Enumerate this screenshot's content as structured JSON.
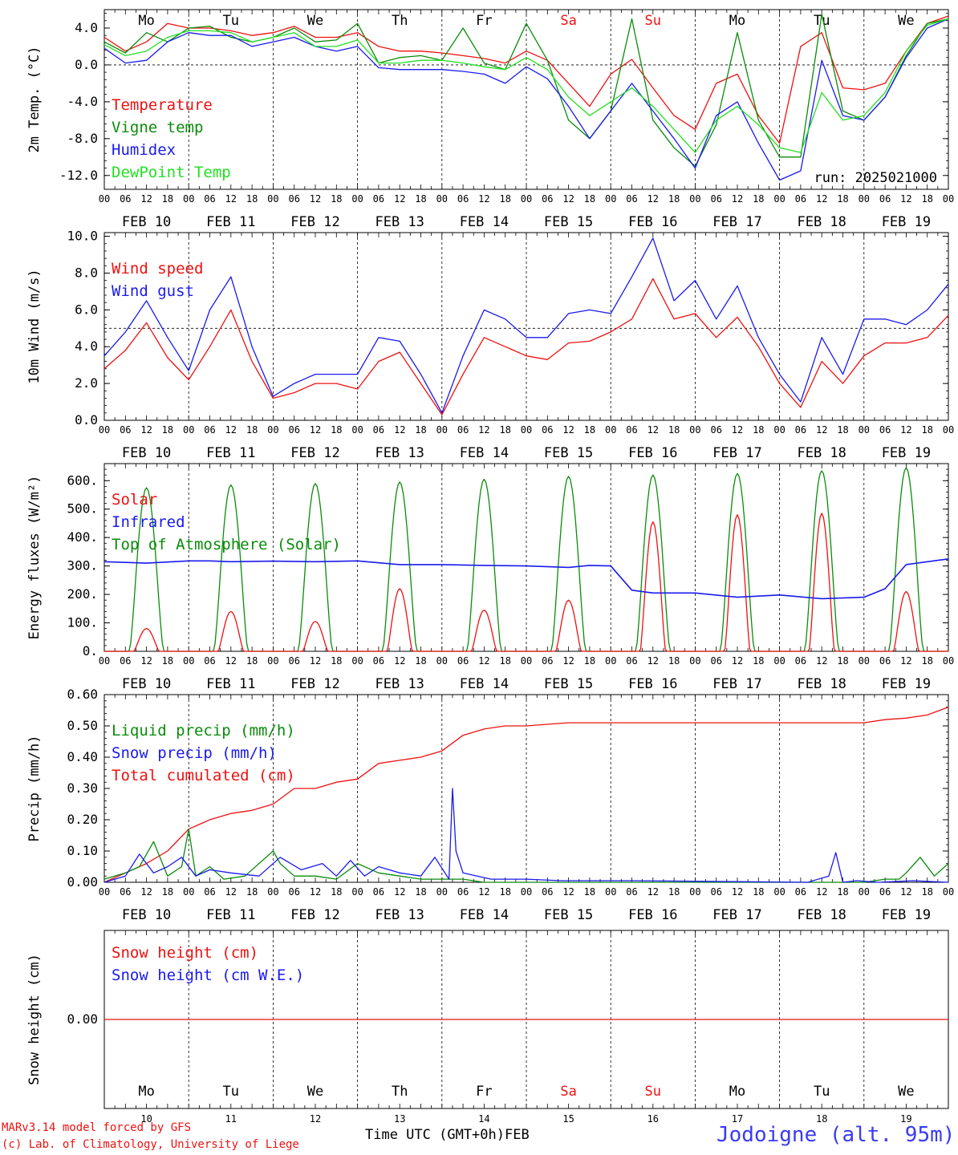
{
  "colors": {
    "red": "#ee1111",
    "dgreen": "#0a8c0a",
    "blue": "#1a1aee",
    "lgreen": "#22e022",
    "station": "#3a3af5"
  },
  "x_axis": {
    "hour_labels": [
      "00",
      "06",
      "12",
      "18"
    ],
    "final_hour_label": "00",
    "date_labels": [
      "FEB 10",
      "FEB 11",
      "FEB 12",
      "FEB 13",
      "FEB 14",
      "FEB 15",
      "FEB 16",
      "FEB 17",
      "FEB 18",
      "FEB 19"
    ],
    "weekdays": [
      "Mo",
      "Tu",
      "We",
      "Th",
      "Fr",
      "Sa",
      "Su",
      "Mo",
      "Tu",
      "We"
    ],
    "weekend_index": [
      5,
      6
    ],
    "day_numbers": [
      "10",
      "11",
      "12",
      "13",
      "14",
      "15",
      "16",
      "17",
      "18",
      "19"
    ],
    "axis_title": "Time UTC (GMT+0h)",
    "month": "FEB"
  },
  "footer": {
    "model": "MARv3.14 model forced by GFS",
    "lab": "(c) Lab. of Climatology, University of Liege",
    "station": "Jodoigne (alt. 95m)"
  },
  "chart_data": [
    {
      "type": "line",
      "ylabel": "2m Temp. (°C)",
      "ylim": [
        -13.5,
        6
      ],
      "yticks": [
        4.0,
        0.0,
        -4.0,
        -8.0,
        -12.0
      ],
      "tick_labels": [
        "4.0",
        "0.0",
        "-4.0",
        "-8.0",
        "-12.0"
      ],
      "ref_line": 0,
      "weekday_row": true,
      "run_label": "run: 2025021000",
      "legend": [
        "Temperature",
        "Vigne temp",
        "Humidex",
        "DewPoint Temp"
      ],
      "x_hours": [
        0,
        6,
        12,
        18,
        24,
        30,
        36,
        42,
        48,
        54,
        60,
        66,
        72,
        78,
        84,
        90,
        96,
        102,
        108,
        114,
        120,
        126,
        132,
        138,
        144,
        150,
        156,
        162,
        168,
        174,
        180,
        186,
        192,
        198,
        204,
        210,
        216,
        222,
        228,
        234,
        240
      ],
      "series": [
        {
          "name": "Temperature",
          "color": "red",
          "values": [
            3.0,
            1.5,
            2.5,
            4.5,
            4.0,
            4.0,
            3.7,
            3.2,
            3.5,
            4.2,
            3.0,
            3.0,
            3.5,
            2.0,
            1.5,
            1.5,
            1.3,
            1.0,
            0.7,
            0.2,
            1.5,
            0.5,
            -2.0,
            -4.5,
            -1.0,
            0.6,
            -2.5,
            -5.5,
            -7.0,
            -2.0,
            -1.0,
            -5.5,
            -8.5,
            2.0,
            3.5,
            -2.5,
            -2.7,
            -2.0,
            1.5,
            4.5,
            5.3
          ]
        },
        {
          "name": "Vigne temp",
          "color": "dgreen",
          "values": [
            2.5,
            1.3,
            3.5,
            2.5,
            4.0,
            4.2,
            3.0,
            2.5,
            3.0,
            4.0,
            2.5,
            2.7,
            4.5,
            0.2,
            0.8,
            1.0,
            0.5,
            4.0,
            0.2,
            -0.5,
            4.5,
            0.5,
            -6.0,
            -8.0,
            -5.0,
            5.0,
            -6.0,
            -9.0,
            -11.0,
            -6.5,
            3.5,
            -6.0,
            -10.0,
            -10.0,
            5.5,
            -5.0,
            -6.0,
            -3.5,
            1.0,
            4.5,
            5.0
          ]
        },
        {
          "name": "Humidex",
          "color": "blue",
          "values": [
            1.8,
            0.2,
            0.5,
            2.5,
            3.5,
            3.2,
            3.2,
            2.0,
            2.5,
            3.0,
            2.0,
            1.5,
            2.0,
            -0.3,
            -0.5,
            -0.5,
            -0.5,
            -0.7,
            -1.0,
            -2.0,
            -0.2,
            -1.5,
            -4.5,
            -8.0,
            -5.0,
            -2.0,
            -5.0,
            -8.0,
            -11.2,
            -5.5,
            -4.0,
            -8.5,
            -12.5,
            -11.5,
            0.5,
            -5.5,
            -6.0,
            -3.5,
            0.8,
            4.0,
            5.0
          ]
        },
        {
          "name": "DewPoint Temp",
          "color": "lgreen",
          "values": [
            2.2,
            1.0,
            1.5,
            3.0,
            3.7,
            3.7,
            3.5,
            2.5,
            3.0,
            3.5,
            2.0,
            2.0,
            2.7,
            0.2,
            0.2,
            0.5,
            0.5,
            0.2,
            -0.2,
            -0.5,
            0.8,
            -0.5,
            -3.5,
            -5.5,
            -4.0,
            -2.5,
            -4.5,
            -7.0,
            -9.5,
            -6.0,
            -4.5,
            -6.5,
            -9.0,
            -9.5,
            -3.0,
            -6.0,
            -5.5,
            -3.0,
            1.5,
            4.3,
            5.0
          ]
        }
      ]
    },
    {
      "type": "line",
      "ylabel": "10m Wind (m/s)",
      "ylim": [
        0,
        10.2
      ],
      "yticks": [
        0,
        2,
        4,
        6,
        8,
        10
      ],
      "tick_labels": [
        "0.0",
        "2.0",
        "4.0",
        "6.0",
        "8.0",
        "10.0"
      ],
      "ref_line": 5,
      "legend": [
        "Wind speed",
        "Wind gust"
      ],
      "x_hours": [
        0,
        6,
        12,
        18,
        24,
        30,
        36,
        42,
        48,
        54,
        60,
        66,
        72,
        78,
        84,
        90,
        96,
        102,
        108,
        114,
        120,
        126,
        132,
        138,
        144,
        150,
        156,
        162,
        168,
        174,
        180,
        186,
        192,
        198,
        204,
        210,
        216,
        222,
        228,
        234,
        240
      ],
      "series": [
        {
          "name": "Wind speed",
          "color": "red",
          "values": [
            2.8,
            3.8,
            5.3,
            3.4,
            2.2,
            4.0,
            6.0,
            3.2,
            1.2,
            1.5,
            2.0,
            2.0,
            1.7,
            3.2,
            3.7,
            2.0,
            0.3,
            2.5,
            4.5,
            4.0,
            3.5,
            3.3,
            4.2,
            4.3,
            4.8,
            5.5,
            7.7,
            5.5,
            5.8,
            4.5,
            5.6,
            4.0,
            2.0,
            0.7,
            3.2,
            2.0,
            3.5,
            4.2,
            4.2,
            4.5,
            5.7
          ]
        },
        {
          "name": "Wind gust",
          "color": "blue",
          "values": [
            3.5,
            4.8,
            6.5,
            4.5,
            2.7,
            6.0,
            7.8,
            4.0,
            1.3,
            2.0,
            2.5,
            2.5,
            2.5,
            4.5,
            4.3,
            2.5,
            0.4,
            3.5,
            6.0,
            5.5,
            4.5,
            4.5,
            5.8,
            6.0,
            5.8,
            7.8,
            9.9,
            6.5,
            7.6,
            5.5,
            7.3,
            4.5,
            2.5,
            1.0,
            4.5,
            2.5,
            5.5,
            5.5,
            5.2,
            6.0,
            7.4
          ]
        }
      ]
    },
    {
      "type": "line",
      "ylabel": "Energy fluxes (W/m²)",
      "ylim": [
        0,
        660
      ],
      "yticks": [
        0,
        100,
        200,
        300,
        400,
        500,
        600
      ],
      "tick_labels": [
        "0.",
        "100.",
        "200.",
        "300.",
        "400.",
        "500.",
        "600."
      ],
      "legend": [
        "Solar",
        "Infrared",
        "Top of Atmosphere (Solar)"
      ],
      "toa_peaks": [
        575,
        585,
        590,
        595,
        605,
        615,
        620,
        625,
        635,
        645
      ],
      "solar_peaks": [
        80,
        140,
        105,
        220,
        145,
        180,
        455,
        480,
        485,
        210
      ],
      "infrared": {
        "x_hours": [
          0,
          12,
          24,
          30,
          36,
          48,
          60,
          72,
          84,
          96,
          108,
          120,
          132,
          138,
          144,
          150,
          156,
          168,
          180,
          192,
          204,
          216,
          222,
          228,
          240
        ],
        "values": [
          315,
          310,
          318,
          318,
          315,
          317,
          315,
          318,
          305,
          305,
          302,
          300,
          295,
          302,
          300,
          215,
          205,
          205,
          190,
          198,
          185,
          190,
          220,
          305,
          325
        ]
      }
    },
    {
      "type": "line",
      "ylabel": "Precip (mm/h)",
      "ylim": [
        0,
        0.6
      ],
      "yticks": [
        0,
        0.1,
        0.2,
        0.3,
        0.4,
        0.5,
        0.6
      ],
      "tick_labels": [
        "0.00",
        "0.10",
        "0.20",
        "0.30",
        "0.40",
        "0.50",
        "0.60"
      ],
      "legend": [
        "Liquid precip (mm/h)",
        "Snow precip (mm/h)",
        "Total cumulated (cm)"
      ],
      "series": [
        {
          "name": "Total cumulated (cm)",
          "color": "red",
          "x_hours": [
            0,
            6,
            12,
            18,
            24,
            30,
            36,
            42,
            48,
            54,
            60,
            66,
            72,
            78,
            84,
            90,
            96,
            102,
            108,
            114,
            120,
            126,
            132,
            138,
            144,
            150,
            156,
            168,
            180,
            192,
            204,
            216,
            222,
            228,
            234,
            240
          ],
          "values": [
            0.0,
            0.03,
            0.06,
            0.1,
            0.17,
            0.2,
            0.22,
            0.23,
            0.25,
            0.3,
            0.3,
            0.32,
            0.33,
            0.38,
            0.39,
            0.4,
            0.42,
            0.47,
            0.49,
            0.5,
            0.5,
            0.505,
            0.51,
            0.51,
            0.51,
            0.51,
            0.51,
            0.51,
            0.51,
            0.51,
            0.51,
            0.51,
            0.52,
            0.525,
            0.535,
            0.56
          ]
        },
        {
          "name": "Liquid precip (mm/h)",
          "color": "dgreen",
          "x_hours": [
            0,
            6,
            10,
            14,
            18,
            22,
            24,
            26,
            30,
            34,
            40,
            48,
            50,
            54,
            60,
            66,
            72,
            78,
            84,
            90,
            96,
            102,
            108,
            120,
            216,
            222,
            226,
            228,
            232,
            236,
            240
          ],
          "values": [
            0.01,
            0.03,
            0.05,
            0.13,
            0.02,
            0.05,
            0.17,
            0.02,
            0.05,
            0.01,
            0.02,
            0.1,
            0.06,
            0.02,
            0.02,
            0.01,
            0.06,
            0.03,
            0.02,
            0.01,
            0.01,
            0.01,
            0.0,
            0.0,
            0.0,
            0.01,
            0.01,
            0.03,
            0.08,
            0.02,
            0.06
          ]
        },
        {
          "name": "Snow precip (mm/h)",
          "color": "blue",
          "x_hours": [
            0,
            6,
            10,
            14,
            18,
            22,
            26,
            30,
            36,
            44,
            50,
            56,
            62,
            66,
            70,
            74,
            78,
            84,
            90,
            94,
            98,
            99,
            100,
            102,
            106,
            110,
            120,
            130,
            140,
            150,
            200,
            206,
            208,
            210,
            214,
            220,
            230,
            240
          ],
          "values": [
            0.0,
            0.02,
            0.09,
            0.03,
            0.05,
            0.08,
            0.02,
            0.04,
            0.03,
            0.02,
            0.08,
            0.04,
            0.06,
            0.02,
            0.07,
            0.02,
            0.05,
            0.03,
            0.02,
            0.08,
            0.01,
            0.3,
            0.1,
            0.03,
            0.02,
            0.01,
            0.01,
            0.005,
            0.005,
            0.005,
            0.0,
            0.02,
            0.095,
            0.0,
            0.005,
            0.0,
            0.005,
            0.0
          ]
        }
      ]
    },
    {
      "type": "line",
      "ylabel": "Snow height (cm)",
      "ylim": [
        -1,
        1
      ],
      "yticks": [
        0
      ],
      "tick_labels": [
        "0.00"
      ],
      "legend": [
        "Snow height (cm)",
        "Snow height (cm W.E.)"
      ],
      "series": [
        {
          "name": "Snow height (cm)",
          "color": "red",
          "x_hours": [
            0,
            240
          ],
          "values": [
            0,
            0
          ]
        }
      ]
    }
  ]
}
